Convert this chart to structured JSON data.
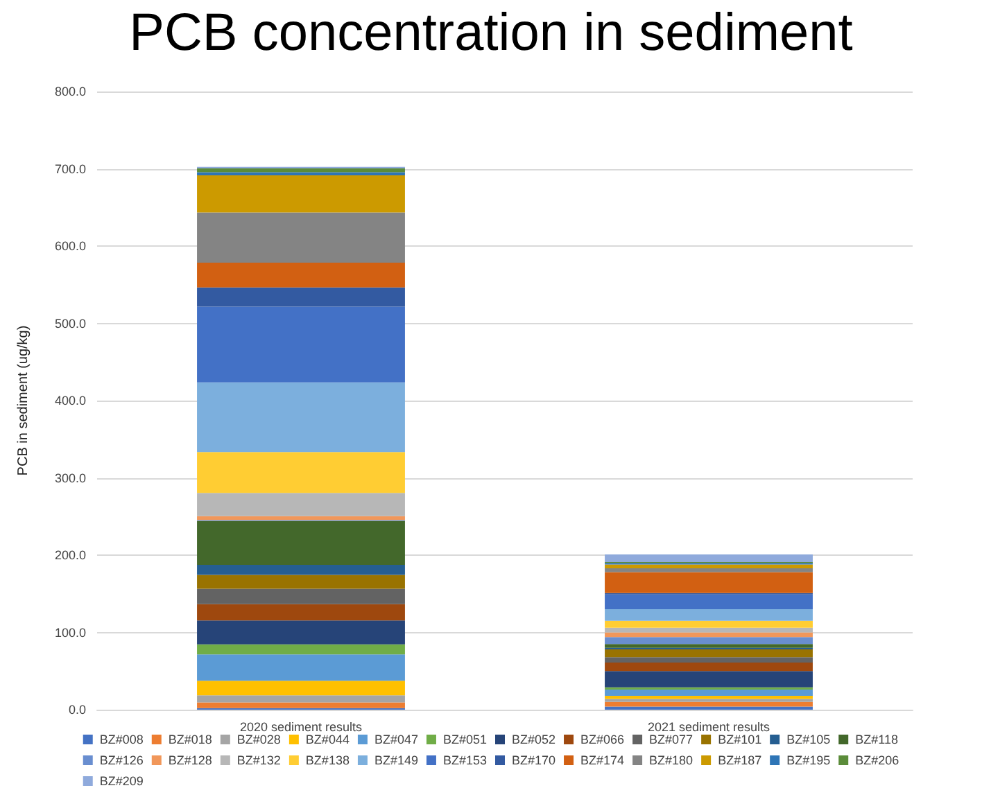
{
  "chart_data": {
    "type": "bar",
    "title": "PCB concentration in sediment",
    "ylabel": "PCB in sediment (ug/kg)",
    "categories": [
      "2020 sediment results",
      "2021 sediment results"
    ],
    "stacked": true,
    "grid": "y",
    "legend": "bottom",
    "ylim": [
      0,
      800
    ],
    "yticks": [
      {
        "value": 0,
        "label": "0.0"
      },
      {
        "value": 100,
        "label": "100.0"
      },
      {
        "value": 200,
        "label": "200.0"
      },
      {
        "value": 300,
        "label": "300.0"
      },
      {
        "value": 400,
        "label": "400.0"
      },
      {
        "value": 500,
        "label": "500.0"
      },
      {
        "value": 600,
        "label": "600.0"
      },
      {
        "value": 700,
        "label": "700.0"
      },
      {
        "value": 800,
        "label": "800.0"
      }
    ],
    "series": [
      {
        "name": "BZ#008",
        "color": "#4472c4",
        "values": [
          2,
          4
        ]
      },
      {
        "name": "BZ#018",
        "color": "#ed7d31",
        "values": [
          7.5,
          6
        ]
      },
      {
        "name": "BZ#028",
        "color": "#a5a5a5",
        "values": [
          9,
          4
        ]
      },
      {
        "name": "BZ#044",
        "color": "#ffc000",
        "values": [
          19,
          4
        ]
      },
      {
        "name": "BZ#047",
        "color": "#5b9bd5",
        "values": [
          34,
          8
        ]
      },
      {
        "name": "BZ#051",
        "color": "#70ad47",
        "values": [
          13,
          3
        ]
      },
      {
        "name": "BZ#052",
        "color": "#264478",
        "values": [
          31,
          21
        ]
      },
      {
        "name": "BZ#066",
        "color": "#9e480e",
        "values": [
          21,
          11
        ]
      },
      {
        "name": "BZ#077",
        "color": "#636363",
        "values": [
          20,
          7
        ]
      },
      {
        "name": "BZ#101",
        "color": "#997300",
        "values": [
          18,
          10
        ]
      },
      {
        "name": "BZ#105",
        "color": "#255e91",
        "values": [
          13,
          2
        ]
      },
      {
        "name": "BZ#118",
        "color": "#43682b",
        "values": [
          57,
          5
        ]
      },
      {
        "name": "BZ#126",
        "color": "#698ed0",
        "values": [
          1,
          9
        ]
      },
      {
        "name": "BZ#128",
        "color": "#f1975a",
        "values": [
          5,
          6
        ]
      },
      {
        "name": "BZ#132",
        "color": "#b7b7b7",
        "values": [
          30,
          6
        ]
      },
      {
        "name": "BZ#138",
        "color": "#ffcd33",
        "values": [
          53,
          9
        ]
      },
      {
        "name": "BZ#149",
        "color": "#7cafdd",
        "values": [
          90,
          15
        ]
      },
      {
        "name": "BZ#153",
        "color": "#4371c6",
        "values": [
          98,
          19
        ]
      },
      {
        "name": "BZ#170",
        "color": "#335aa1",
        "values": [
          25,
          2
        ]
      },
      {
        "name": "BZ#174",
        "color": "#d26012",
        "values": [
          32,
          27
        ]
      },
      {
        "name": "BZ#180",
        "color": "#848484",
        "values": [
          65,
          5
        ]
      },
      {
        "name": "BZ#187",
        "color": "#cc9a00",
        "values": [
          48,
          5
        ]
      },
      {
        "name": "BZ#195",
        "color": "#2e75b6",
        "values": [
          4,
          2
        ]
      },
      {
        "name": "BZ#206",
        "color": "#5b8c3a",
        "values": [
          5,
          1
        ]
      },
      {
        "name": "BZ#209",
        "color": "#8faadc",
        "values": [
          2,
          10
        ]
      }
    ]
  }
}
